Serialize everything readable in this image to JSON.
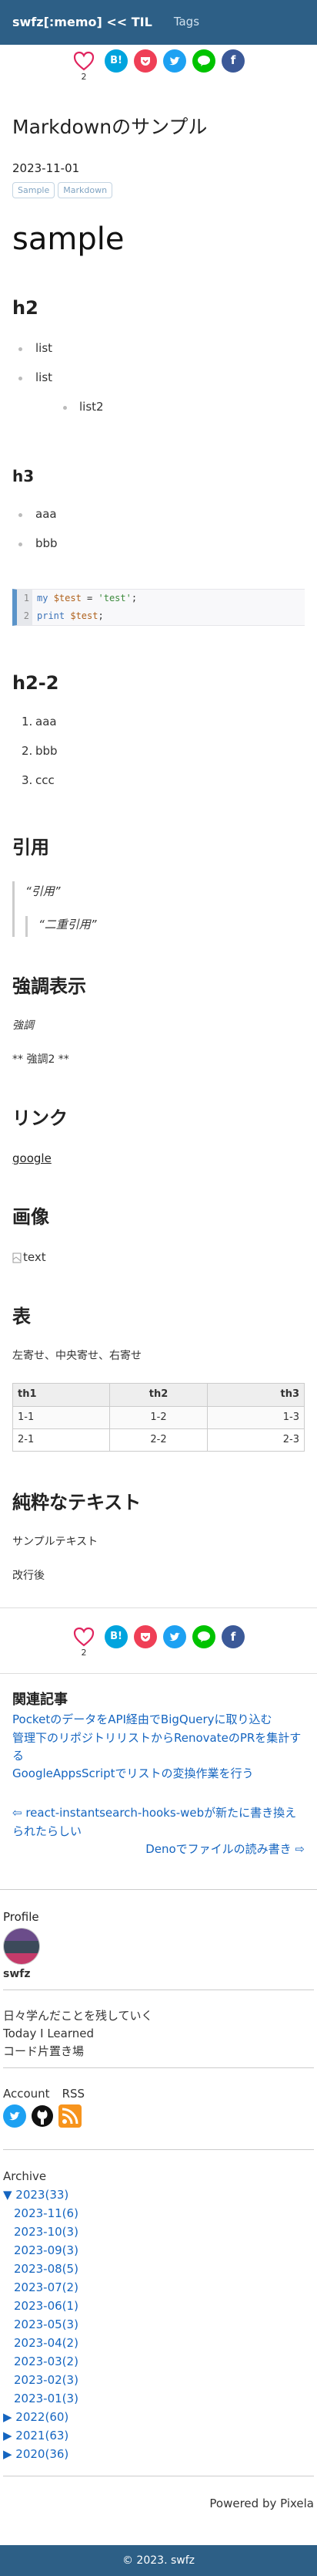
{
  "nav": {
    "brand": "swfz[:memo] << TIL",
    "tags": "Tags"
  },
  "share": {
    "like_count": "2",
    "hatena": "B!",
    "pocket": "♥",
    "twitter": "♥",
    "line": "♥",
    "facebook": "f"
  },
  "article": {
    "title": "Markdownのサンプル",
    "date": "2023-11-01",
    "tags": [
      "Sample",
      "Markdown"
    ],
    "h1": "sample",
    "h2_1": "h2",
    "list1": [
      "list",
      "list"
    ],
    "list_nested": "list2",
    "h3": "h3",
    "list2": [
      "aaa",
      "bbb"
    ],
    "code": {
      "lines": [
        {
          "n": "1",
          "kw": "my",
          "var": "$test",
          "eq": " = ",
          "str": "'test'",
          "end": ";"
        },
        {
          "n": "2",
          "kw": "print",
          "var": "$test",
          "end": ";"
        }
      ]
    },
    "h2_2": "h2-2",
    "olist": [
      {
        "n": "1.",
        "t": "aaa"
      },
      {
        "n": "2.",
        "t": "bbb"
      },
      {
        "n": "3.",
        "t": "ccc"
      }
    ],
    "quote_h": "引用",
    "quote1": "“引用”",
    "quote2": "“二重引用”",
    "emph_h": "強調表示",
    "emph1": "強調",
    "emph2": "** 強調2 **",
    "link_h": "リンク",
    "link_text": "google",
    "image_h": "画像",
    "image_alt": "text",
    "table_h": "表",
    "table_desc": "左寄せ、中央寄せ、右寄せ",
    "table": {
      "headers": [
        "th1",
        "th2",
        "th3"
      ],
      "rows": [
        [
          "1-1",
          "1-2",
          "1-3"
        ],
        [
          "2-1",
          "2-2",
          "2-3"
        ]
      ]
    },
    "plain_h": "純粋なテキスト",
    "plain1": "サンプルテキスト",
    "plain2": "改行後"
  },
  "related": {
    "title": "関連記事",
    "items": [
      "PocketのデータをAPI経由でBigQueryに取り込む",
      "管理下のリポジトリリストからRenovateのPRを集計する",
      "GoogleAppsScriptでリストの変換作業を行う"
    ],
    "prev": "⇦ react-instantsearch-hooks-webが新たに書き換えられたらしい",
    "next": "Denoでファイルの読み書き ⇨"
  },
  "profile": {
    "label": "Profile",
    "name": "swfz",
    "desc": [
      "日々学んだことを残していく",
      "Today I Learned",
      "コード片置き場"
    ]
  },
  "account": {
    "label": "Account",
    "rss": "RSS"
  },
  "archive": {
    "label": "Archive",
    "open_year": "▼ 2023(33)",
    "months": [
      "2023-11(6)",
      "2023-10(3)",
      "2023-09(3)",
      "2023-08(5)",
      "2023-07(2)",
      "2023-06(1)",
      "2023-05(3)",
      "2023-04(2)",
      "2023-03(2)",
      "2023-02(3)",
      "2023-01(3)"
    ],
    "years": [
      "▶ 2022(60)",
      "▶ 2021(63)",
      "▶ 2020(36)"
    ]
  },
  "powered": "Powered by Pixela",
  "footer": "© 2023. swfz",
  "colors": {
    "nav": "#2d5f86",
    "like": "#e0245e",
    "hatena": "#00a4de",
    "pocket": "#ef3f56",
    "twitter": "#1da1f2",
    "line": "#00c300",
    "facebook": "#3b5998"
  }
}
